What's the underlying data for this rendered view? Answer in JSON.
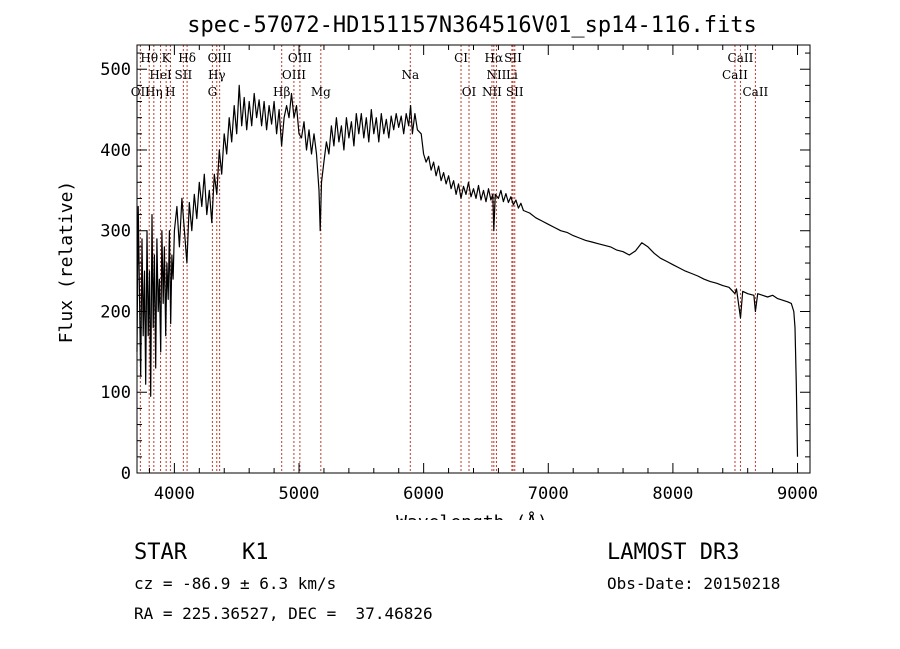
{
  "chart_data": {
    "type": "line",
    "title": "spec-57072-HD151157N364516V01_sp14-116.fits",
    "xlabel": "Wavelength (Å)",
    "ylabel": "Flux (relative)",
    "xlim": [
      3700,
      9100
    ],
    "ylim": [
      0,
      530
    ],
    "xticks": [
      4000,
      5000,
      6000,
      7000,
      8000,
      9000
    ],
    "yticks": [
      0,
      100,
      200,
      300,
      400,
      500
    ],
    "grid": false,
    "series": [
      {
        "name": "spectrum",
        "color": "#000000",
        "points": [
          [
            3700,
            150
          ],
          [
            3710,
            330
          ],
          [
            3720,
            220
          ],
          [
            3730,
            120
          ],
          [
            3740,
            290
          ],
          [
            3750,
            170
          ],
          [
            3760,
            250
          ],
          [
            3770,
            110
          ],
          [
            3780,
            300
          ],
          [
            3790,
            170
          ],
          [
            3800,
            250
          ],
          [
            3810,
            95
          ],
          [
            3820,
            320
          ],
          [
            3830,
            180
          ],
          [
            3840,
            270
          ],
          [
            3850,
            130
          ],
          [
            3860,
            290
          ],
          [
            3870,
            200
          ],
          [
            3880,
            240
          ],
          [
            3890,
            150
          ],
          [
            3900,
            300
          ],
          [
            3910,
            210
          ],
          [
            3920,
            280
          ],
          [
            3930,
            170
          ],
          [
            3940,
            260
          ],
          [
            3950,
            215
          ],
          [
            3960,
            300
          ],
          [
            3970,
            185
          ],
          [
            3980,
            270
          ],
          [
            3990,
            240
          ],
          [
            4000,
            300
          ],
          [
            4020,
            330
          ],
          [
            4040,
            280
          ],
          [
            4060,
            340
          ],
          [
            4080,
            300
          ],
          [
            4100,
            260
          ],
          [
            4120,
            335
          ],
          [
            4140,
            300
          ],
          [
            4160,
            345
          ],
          [
            4180,
            315
          ],
          [
            4200,
            360
          ],
          [
            4220,
            330
          ],
          [
            4240,
            370
          ],
          [
            4260,
            320
          ],
          [
            4280,
            350
          ],
          [
            4300,
            310
          ],
          [
            4320,
            370
          ],
          [
            4340,
            345
          ],
          [
            4360,
            400
          ],
          [
            4380,
            370
          ],
          [
            4400,
            420
          ],
          [
            4420,
            395
          ],
          [
            4440,
            440
          ],
          [
            4460,
            410
          ],
          [
            4480,
            455
          ],
          [
            4500,
            420
          ],
          [
            4520,
            480
          ],
          [
            4540,
            430
          ],
          [
            4560,
            465
          ],
          [
            4580,
            425
          ],
          [
            4600,
            460
          ],
          [
            4620,
            430
          ],
          [
            4640,
            470
          ],
          [
            4660,
            440
          ],
          [
            4680,
            462
          ],
          [
            4700,
            430
          ],
          [
            4720,
            460
          ],
          [
            4740,
            425
          ],
          [
            4760,
            455
          ],
          [
            4780,
            432
          ],
          [
            4800,
            460
          ],
          [
            4820,
            420
          ],
          [
            4840,
            450
          ],
          [
            4860,
            405
          ],
          [
            4880,
            440
          ],
          [
            4900,
            455
          ],
          [
            4920,
            440
          ],
          [
            4940,
            470
          ],
          [
            4960,
            440
          ],
          [
            4980,
            455
          ],
          [
            5000,
            420
          ],
          [
            5020,
            415
          ],
          [
            5040,
            435
          ],
          [
            5060,
            400
          ],
          [
            5080,
            425
          ],
          [
            5100,
            395
          ],
          [
            5120,
            420
          ],
          [
            5140,
            395
          ],
          [
            5160,
            350
          ],
          [
            5170,
            300
          ],
          [
            5180,
            360
          ],
          [
            5200,
            385
          ],
          [
            5220,
            410
          ],
          [
            5240,
            395
          ],
          [
            5260,
            430
          ],
          [
            5280,
            405
          ],
          [
            5300,
            440
          ],
          [
            5320,
            410
          ],
          [
            5340,
            430
          ],
          [
            5360,
            400
          ],
          [
            5380,
            440
          ],
          [
            5400,
            415
          ],
          [
            5420,
            435
          ],
          [
            5440,
            405
          ],
          [
            5460,
            445
          ],
          [
            5480,
            420
          ],
          [
            5500,
            445
          ],
          [
            5520,
            415
          ],
          [
            5540,
            440
          ],
          [
            5560,
            410
          ],
          [
            5580,
            450
          ],
          [
            5600,
            420
          ],
          [
            5620,
            440
          ],
          [
            5640,
            410
          ],
          [
            5660,
            445
          ],
          [
            5680,
            420
          ],
          [
            5700,
            438
          ],
          [
            5720,
            415
          ],
          [
            5740,
            442
          ],
          [
            5760,
            425
          ],
          [
            5780,
            445
          ],
          [
            5800,
            428
          ],
          [
            5820,
            442
          ],
          [
            5840,
            420
          ],
          [
            5860,
            445
          ],
          [
            5880,
            430
          ],
          [
            5895,
            455
          ],
          [
            5910,
            420
          ],
          [
            5930,
            445
          ],
          [
            5950,
            425
          ],
          [
            5980,
            420
          ],
          [
            6000,
            395
          ],
          [
            6020,
            385
          ],
          [
            6040,
            392
          ],
          [
            6060,
            375
          ],
          [
            6080,
            385
          ],
          [
            6100,
            368
          ],
          [
            6120,
            380
          ],
          [
            6140,
            362
          ],
          [
            6160,
            372
          ],
          [
            6180,
            358
          ],
          [
            6200,
            368
          ],
          [
            6220,
            352
          ],
          [
            6240,
            362
          ],
          [
            6260,
            345
          ],
          [
            6280,
            358
          ],
          [
            6300,
            340
          ],
          [
            6320,
            355
          ],
          [
            6340,
            345
          ],
          [
            6360,
            360
          ],
          [
            6380,
            342
          ],
          [
            6400,
            352
          ],
          [
            6420,
            340
          ],
          [
            6440,
            356
          ],
          [
            6460,
            338
          ],
          [
            6480,
            350
          ],
          [
            6500,
            336
          ],
          [
            6520,
            352
          ],
          [
            6540,
            338
          ],
          [
            6555,
            345
          ],
          [
            6563,
            300
          ],
          [
            6575,
            345
          ],
          [
            6600,
            340
          ],
          [
            6620,
            350
          ],
          [
            6640,
            336
          ],
          [
            6660,
            346
          ],
          [
            6680,
            335
          ],
          [
            6700,
            342
          ],
          [
            6720,
            332
          ],
          [
            6740,
            338
          ],
          [
            6760,
            328
          ],
          [
            6780,
            334
          ],
          [
            6800,
            325
          ],
          [
            6850,
            322
          ],
          [
            6900,
            316
          ],
          [
            6950,
            312
          ],
          [
            7000,
            308
          ],
          [
            7050,
            304
          ],
          [
            7100,
            300
          ],
          [
            7150,
            298
          ],
          [
            7200,
            294
          ],
          [
            7250,
            291
          ],
          [
            7300,
            288
          ],
          [
            7350,
            286
          ],
          [
            7400,
            284
          ],
          [
            7450,
            282
          ],
          [
            7500,
            280
          ],
          [
            7550,
            276
          ],
          [
            7600,
            274
          ],
          [
            7650,
            270
          ],
          [
            7700,
            275
          ],
          [
            7750,
            285
          ],
          [
            7800,
            280
          ],
          [
            7850,
            272
          ],
          [
            7900,
            266
          ],
          [
            7950,
            262
          ],
          [
            8000,
            258
          ],
          [
            8050,
            254
          ],
          [
            8100,
            250
          ],
          [
            8150,
            247
          ],
          [
            8200,
            244
          ],
          [
            8250,
            240
          ],
          [
            8300,
            237
          ],
          [
            8350,
            235
          ],
          [
            8400,
            232
          ],
          [
            8450,
            230
          ],
          [
            8498,
            222
          ],
          [
            8510,
            228
          ],
          [
            8542,
            192
          ],
          [
            8560,
            225
          ],
          [
            8600,
            222
          ],
          [
            8650,
            220
          ],
          [
            8662,
            200
          ],
          [
            8680,
            222
          ],
          [
            8720,
            220
          ],
          [
            8760,
            218
          ],
          [
            8800,
            220
          ],
          [
            8840,
            216
          ],
          [
            8880,
            214
          ],
          [
            8920,
            212
          ],
          [
            8950,
            210
          ],
          [
            8970,
            200
          ],
          [
            8980,
            180
          ],
          [
            8990,
            110
          ],
          [
            9000,
            20
          ]
        ]
      }
    ],
    "line_ids": [
      {
        "label": "Hθ",
        "x": 3798,
        "row": 0
      },
      {
        "label": "K",
        "x": 3934,
        "row": 0
      },
      {
        "label": "Hδ",
        "x": 4102,
        "row": 0
      },
      {
        "label": "OIII",
        "x": 4363,
        "row": 0
      },
      {
        "label": "OIII",
        "x": 5007,
        "row": 0
      },
      {
        "label": "CI",
        "x": 6300,
        "row": 0
      },
      {
        "label": "Hα",
        "x": 6563,
        "row": 0
      },
      {
        "label": "SII",
        "x": 6717,
        "row": 0
      },
      {
        "label": "CaII",
        "x": 8542,
        "row": 0
      },
      {
        "label": "HeI",
        "x": 3889,
        "row": 1
      },
      {
        "label": "SII",
        "x": 4072,
        "row": 1
      },
      {
        "label": "Hγ",
        "x": 4340,
        "row": 1
      },
      {
        "label": "OIII",
        "x": 4959,
        "row": 1
      },
      {
        "label": "Na",
        "x": 5893,
        "row": 1
      },
      {
        "label": "NII",
        "x": 6584,
        "row": 1
      },
      {
        "label": "Li",
        "x": 6708,
        "row": 1
      },
      {
        "label": "CaII",
        "x": 8498,
        "row": 1
      },
      {
        "label": "OII",
        "x": 3727,
        "row": 2
      },
      {
        "label": "Hη",
        "x": 3835,
        "row": 2
      },
      {
        "label": "H",
        "x": 3968,
        "row": 2
      },
      {
        "label": "G",
        "x": 4305,
        "row": 2
      },
      {
        "label": "Hβ",
        "x": 4861,
        "row": 2
      },
      {
        "label": "Mg",
        "x": 5175,
        "row": 2
      },
      {
        "label": "OI",
        "x": 6364,
        "row": 2
      },
      {
        "label": "NII",
        "x": 6548,
        "row": 2
      },
      {
        "label": "SII",
        "x": 6731,
        "row": 2
      },
      {
        "label": "CaII",
        "x": 8662,
        "row": 2
      }
    ]
  },
  "info": {
    "class": "STAR",
    "subclass": "K1",
    "survey": "LAMOST DR3",
    "cz": "cz = -86.9 ± 6.3 km/s",
    "obs_date": "Obs-Date: 20150218",
    "coords": "RA = 225.36527, DEC =  37.46826"
  },
  "colors": {
    "line_marker": "#c0392b",
    "spectrum": "#000000"
  }
}
